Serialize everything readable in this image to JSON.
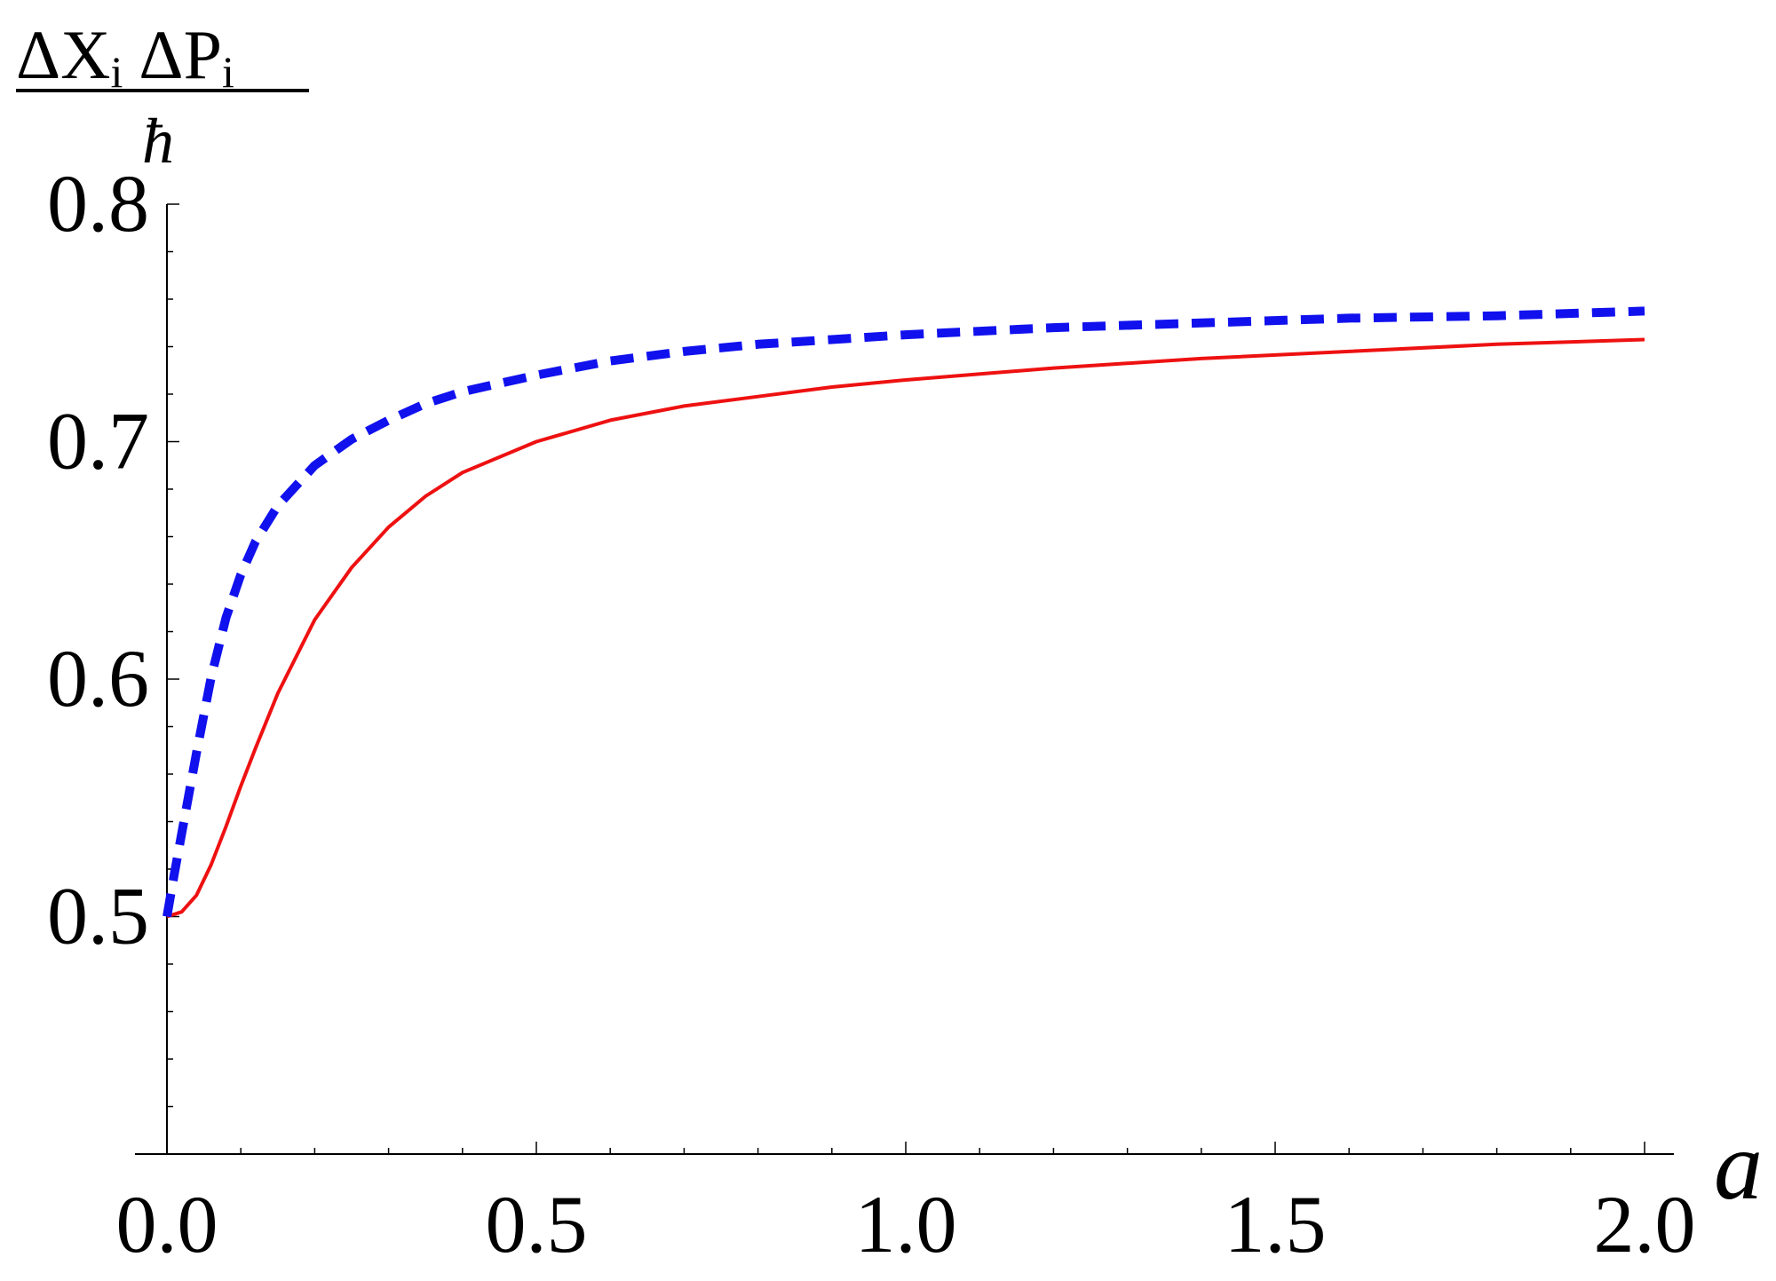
{
  "chart_data": {
    "type": "line",
    "title": "",
    "ylabel": {
      "numerator": [
        {
          "text": "ΔX",
          "sub": "i"
        },
        {
          "text": "ΔP",
          "sub": "i"
        }
      ],
      "denominator": "ħ"
    },
    "xlabel": "a",
    "xlim": [
      0,
      2
    ],
    "ylim": [
      0.4,
      0.8
    ],
    "x_ticks": [
      "0.0",
      "0.5",
      "1.0",
      "1.5",
      "2.0"
    ],
    "x_tick_values": [
      0,
      0.5,
      1.0,
      1.5,
      2.0
    ],
    "y_ticks": [
      "0.5",
      "0.6",
      "0.7",
      "0.8"
    ],
    "y_tick_values": [
      0.5,
      0.6,
      0.7,
      0.8
    ],
    "grid": false,
    "series": [
      {
        "style": "solid",
        "color": "#ee1111",
        "x": [
          0,
          0.02,
          0.04,
          0.06,
          0.08,
          0.1,
          0.12,
          0.15,
          0.2,
          0.25,
          0.3,
          0.35,
          0.4,
          0.5,
          0.6,
          0.7,
          0.8,
          0.9,
          1.0,
          1.2,
          1.4,
          1.6,
          1.8,
          2.0
        ],
        "y": [
          0.5,
          0.502,
          0.509,
          0.522,
          0.538,
          0.555,
          0.571,
          0.594,
          0.625,
          0.647,
          0.664,
          0.677,
          0.687,
          0.7,
          0.709,
          0.715,
          0.719,
          0.723,
          0.726,
          0.731,
          0.735,
          0.738,
          0.741,
          0.743
        ]
      },
      {
        "style": "dashed",
        "color": "#1111ee",
        "x": [
          0,
          0.01,
          0.02,
          0.04,
          0.06,
          0.08,
          0.1,
          0.12,
          0.15,
          0.2,
          0.25,
          0.3,
          0.35,
          0.4,
          0.5,
          0.6,
          0.7,
          0.8,
          0.9,
          1.0,
          1.2,
          1.4,
          1.6,
          1.8,
          2.0
        ],
        "y": [
          0.5,
          0.518,
          0.535,
          0.569,
          0.601,
          0.626,
          0.644,
          0.658,
          0.673,
          0.69,
          0.701,
          0.709,
          0.716,
          0.721,
          0.728,
          0.734,
          0.738,
          0.741,
          0.743,
          0.745,
          0.748,
          0.75,
          0.752,
          0.753,
          0.755
        ]
      }
    ]
  }
}
